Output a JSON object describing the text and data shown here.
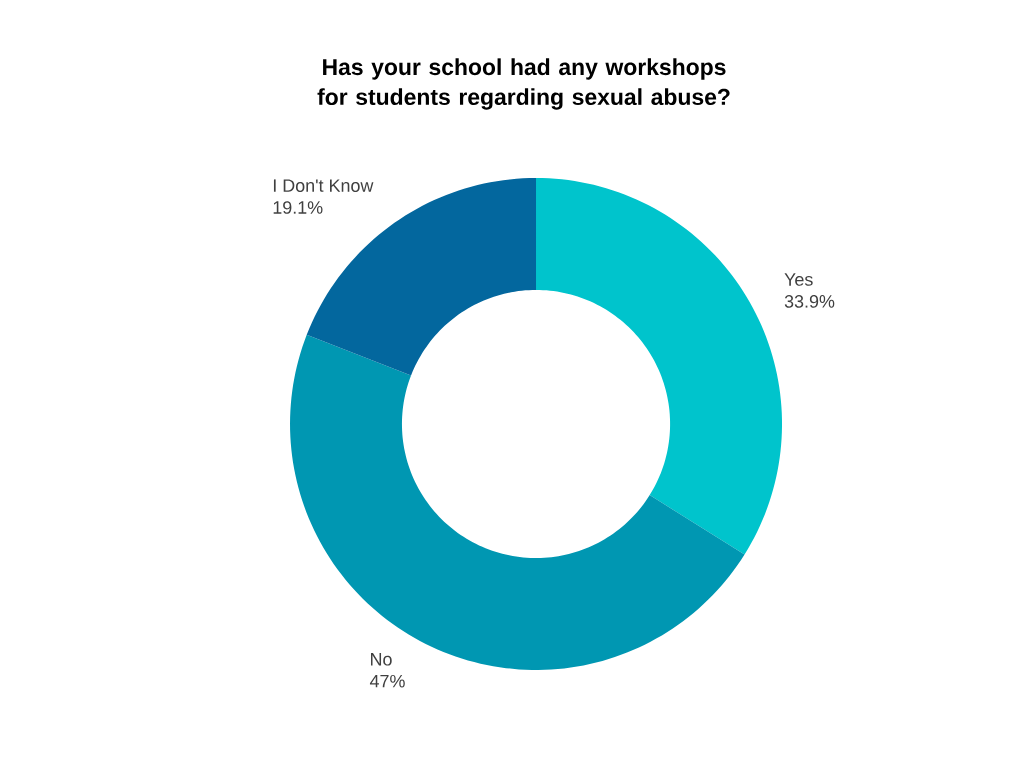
{
  "chart_data": {
    "type": "donut",
    "title": "Has your school had any workshops for students regarding sexual abuse?",
    "categories": [
      "Yes",
      "No",
      "I Don't Know"
    ],
    "values": [
      33.9,
      47,
      19.1
    ],
    "colors": [
      "#00c4cc",
      "#0097b2",
      "#03679e"
    ],
    "value_labels": [
      "33.9%",
      "47%",
      "19.1%"
    ]
  }
}
